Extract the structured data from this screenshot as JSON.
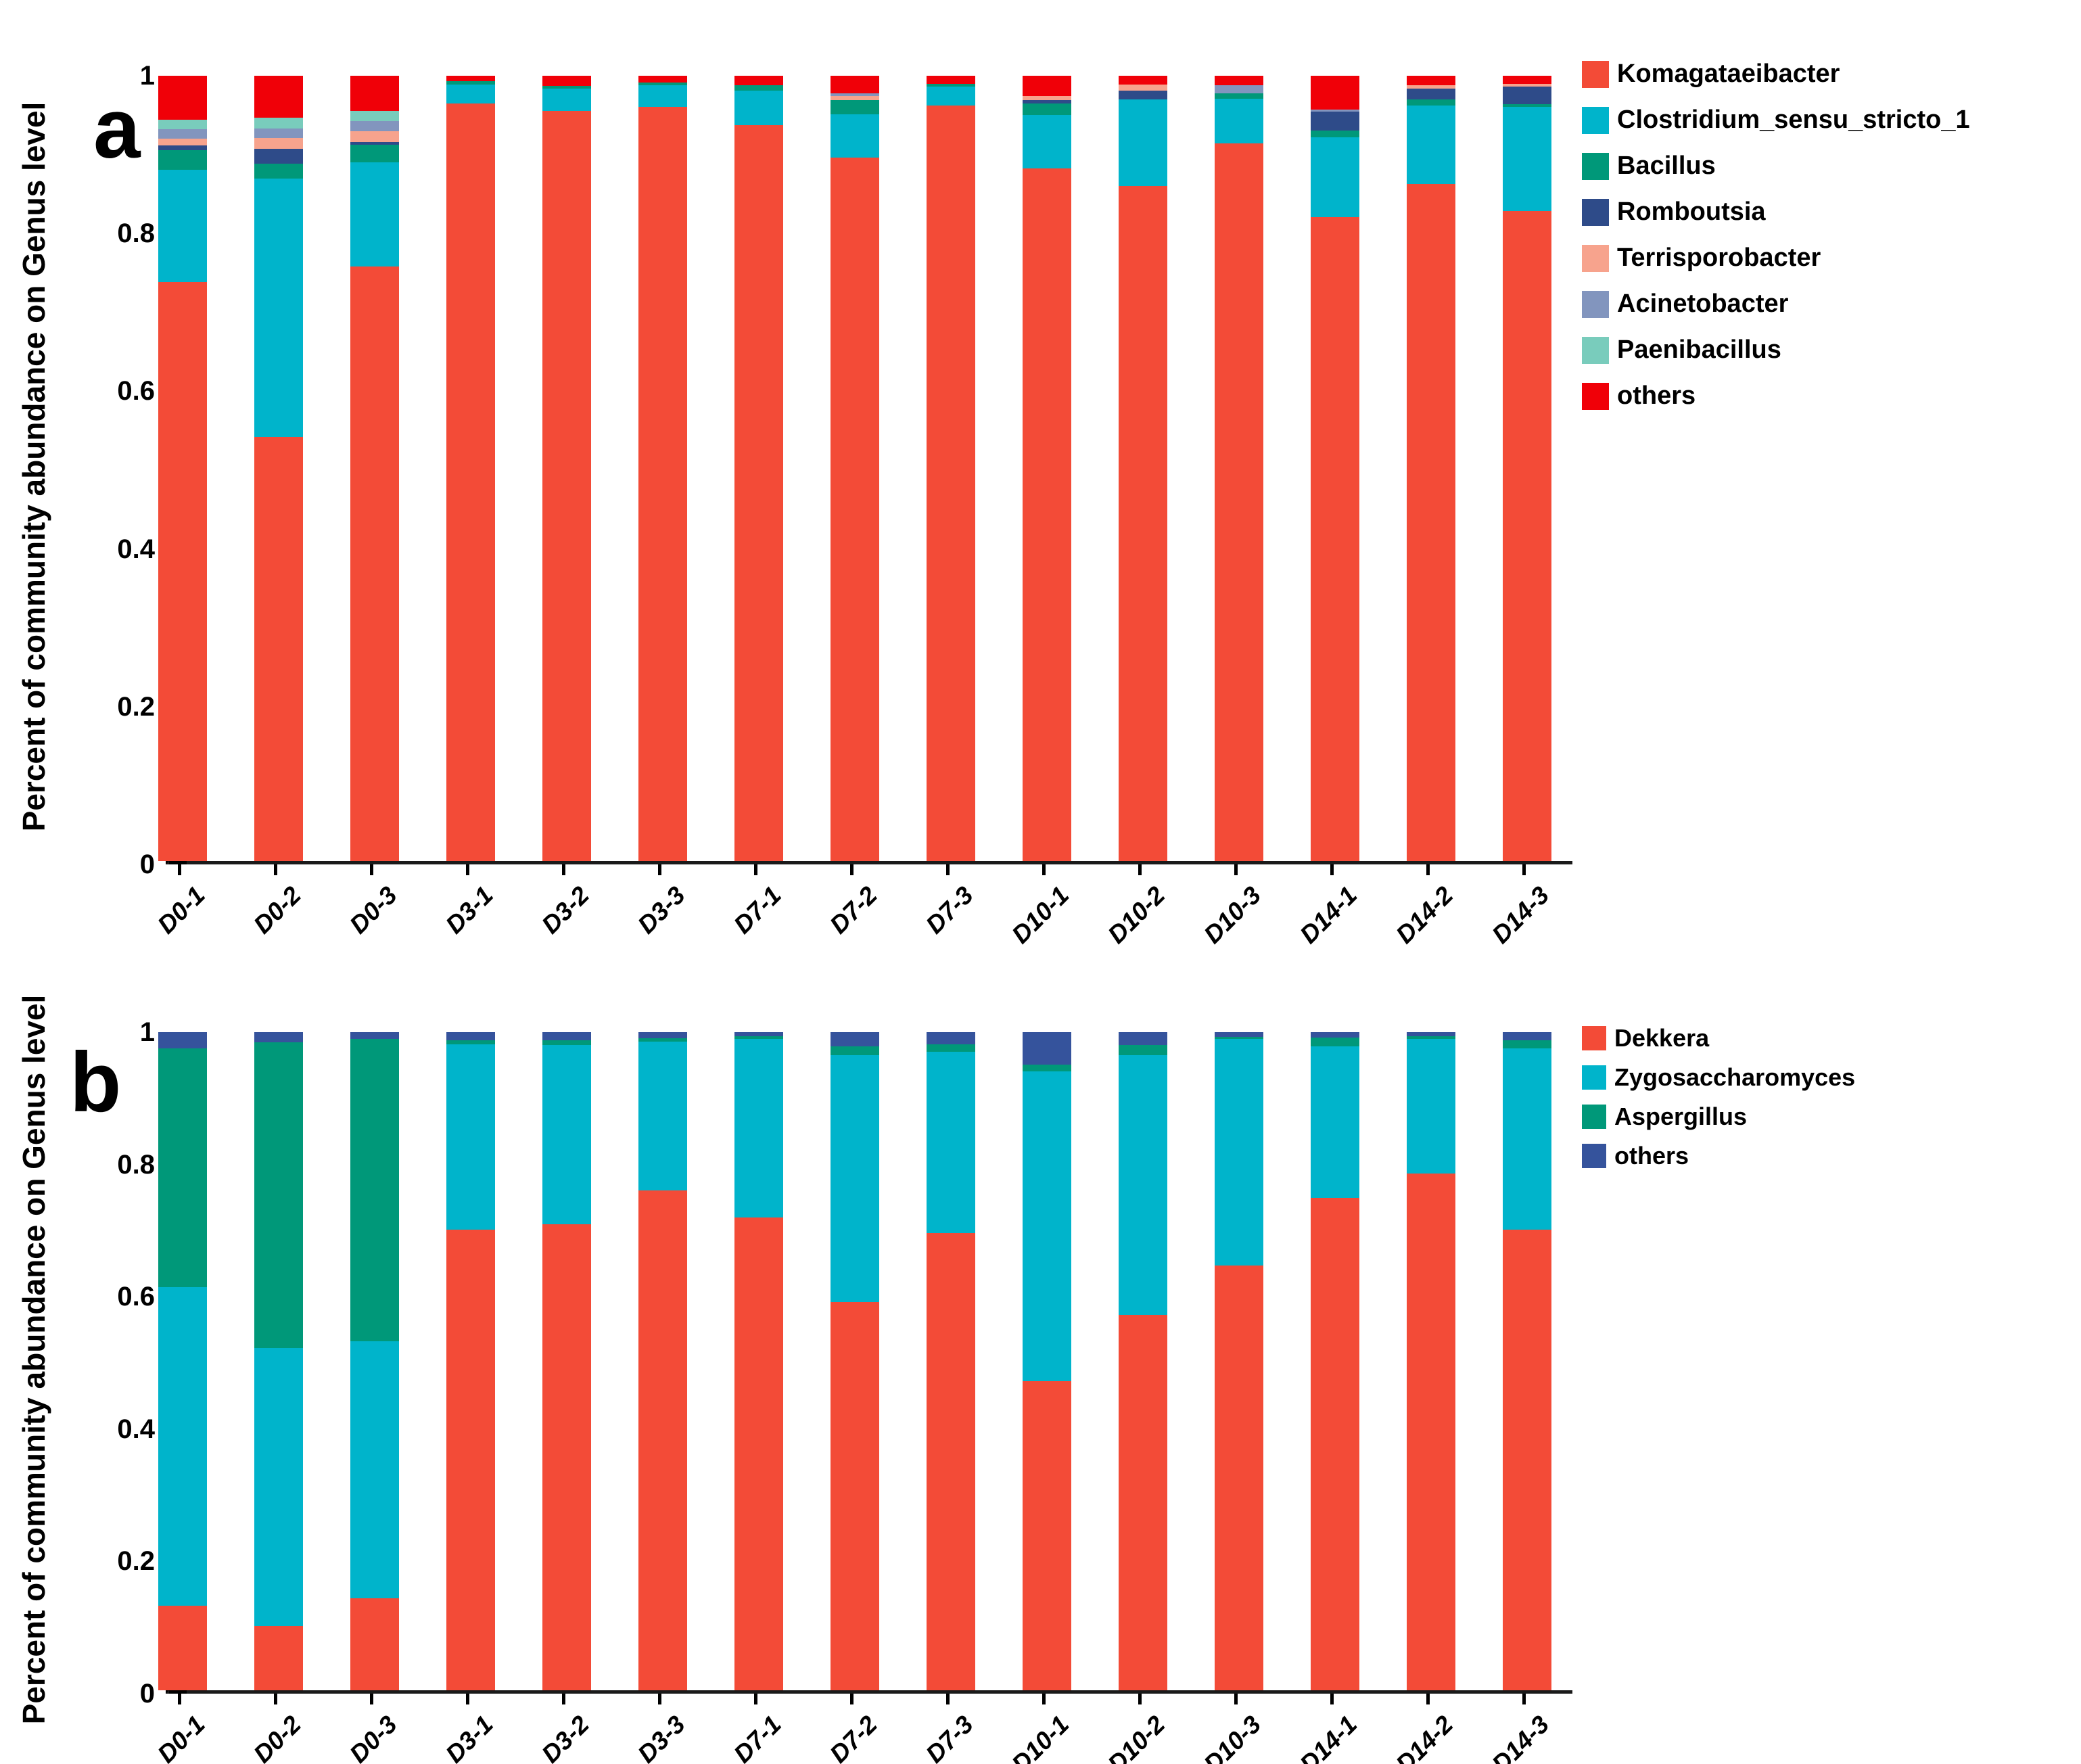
{
  "figure": {
    "background": "#ffffff",
    "ylabel": "Percent of community abundance on Genus level"
  },
  "chart_data": [
    {
      "type": "bar",
      "stacked": true,
      "panel_letter": "a",
      "ylabel": "Percent of community abundance on Genus level",
      "xlabel": "",
      "ylim": [
        0,
        1
      ],
      "yticks": [
        "1",
        "0.8",
        "0.6",
        "0.4",
        "0.2",
        "0"
      ],
      "ytick_values": [
        1,
        0.8,
        0.6,
        0.4,
        0.2,
        0
      ],
      "grid": false,
      "legend_position": "right-top",
      "categories": [
        "D0-1",
        "D0-2",
        "D0-3",
        "D3-1",
        "D3-2",
        "D3-3",
        "D7-1",
        "D7-2",
        "D7-3",
        "D10-1",
        "D10-2",
        "D10-3",
        "D14-1",
        "D14-2",
        "D14-3"
      ],
      "series": [
        {
          "name": "Komagataeibacter",
          "color": "#F34B37",
          "values": [
            0.737,
            0.54,
            0.757,
            0.965,
            0.955,
            0.96,
            0.937,
            0.896,
            0.962,
            0.882,
            0.86,
            0.914,
            0.82,
            0.862,
            0.828
          ]
        },
        {
          "name": "Clostridium_sensu_stricto_1",
          "color": "#00B4CB",
          "values": [
            0.143,
            0.329,
            0.133,
            0.024,
            0.029,
            0.028,
            0.044,
            0.055,
            0.024,
            0.068,
            0.11,
            0.057,
            0.102,
            0.1,
            0.132
          ]
        },
        {
          "name": "Bacillus",
          "color": "#009879",
          "values": [
            0.025,
            0.019,
            0.022,
            0.004,
            0.003,
            0.003,
            0.007,
            0.018,
            0.004,
            0.015,
            0.0,
            0.007,
            0.008,
            0.008,
            0.004
          ]
        },
        {
          "name": "Romboutsia",
          "color": "#2E4B89",
          "values": [
            0.006,
            0.019,
            0.004,
            0.0,
            0.0,
            0.0,
            0.0,
            0.0,
            0.0,
            0.004,
            0.011,
            0.0,
            0.024,
            0.014,
            0.022
          ]
        },
        {
          "name": "Terrisporobacter",
          "color": "#F7A38D",
          "values": [
            0.009,
            0.014,
            0.013,
            0.0,
            0.0,
            0.0,
            0.0,
            0.005,
            0.0,
            0.005,
            0.008,
            0.0,
            0.0,
            0.004,
            0.004
          ]
        },
        {
          "name": "Acinetobacter",
          "color": "#8295BE",
          "values": [
            0.012,
            0.012,
            0.013,
            0.0,
            0.0,
            0.0,
            0.0,
            0.004,
            0.0,
            0.0,
            0.0,
            0.01,
            0.003,
            0.0,
            0.0
          ]
        },
        {
          "name": "Paenibacillus",
          "color": "#79CCBC",
          "values": [
            0.012,
            0.014,
            0.013,
            0.0,
            0.0,
            0.0,
            0.0,
            0.0,
            0.0,
            0.0,
            0.0,
            0.0,
            0.0,
            0.0,
            0.0
          ]
        },
        {
          "name": "others",
          "color": "#F00008",
          "values": [
            0.056,
            0.053,
            0.045,
            0.007,
            0.013,
            0.009,
            0.012,
            0.022,
            0.01,
            0.026,
            0.011,
            0.012,
            0.043,
            0.012,
            0.01
          ]
        }
      ]
    },
    {
      "type": "bar",
      "stacked": true,
      "panel_letter": "b",
      "ylabel": "Percent of community abundance on Genus level",
      "xlabel": "",
      "ylim": [
        0,
        1
      ],
      "yticks": [
        "1",
        "0.8",
        "0.6",
        "0.4",
        "0.2",
        "0"
      ],
      "ytick_values": [
        1,
        0.8,
        0.6,
        0.4,
        0.2,
        0
      ],
      "grid": false,
      "legend_position": "right-top",
      "categories": [
        "D0-1",
        "D0-2",
        "D0-3",
        "D3-1",
        "D3-2",
        "D3-3",
        "D7-1",
        "D7-2",
        "D7-3",
        "D10-1",
        "D10-2",
        "D10-3",
        "D14-1",
        "D14-2",
        "D14-3"
      ],
      "series": [
        {
          "name": "Dekkera",
          "color": "#F34B37",
          "values": [
            0.128,
            0.098,
            0.14,
            0.7,
            0.708,
            0.76,
            0.718,
            0.59,
            0.695,
            0.47,
            0.57,
            0.645,
            0.748,
            0.785,
            0.7
          ]
        },
        {
          "name": "Zygosaccharomyces",
          "color": "#00B4CB",
          "values": [
            0.485,
            0.422,
            0.39,
            0.282,
            0.272,
            0.226,
            0.272,
            0.375,
            0.275,
            0.47,
            0.395,
            0.345,
            0.23,
            0.205,
            0.275
          ]
        },
        {
          "name": "Aspergillus",
          "color": "#009879",
          "values": [
            0.362,
            0.465,
            0.46,
            0.006,
            0.008,
            0.005,
            0.004,
            0.013,
            0.012,
            0.011,
            0.016,
            0.003,
            0.014,
            0.004,
            0.013
          ]
        },
        {
          "name": "others",
          "color": "#35539C",
          "values": [
            0.025,
            0.015,
            0.01,
            0.012,
            0.012,
            0.009,
            0.006,
            0.022,
            0.018,
            0.049,
            0.019,
            0.007,
            0.008,
            0.006,
            0.012
          ]
        }
      ]
    }
  ]
}
